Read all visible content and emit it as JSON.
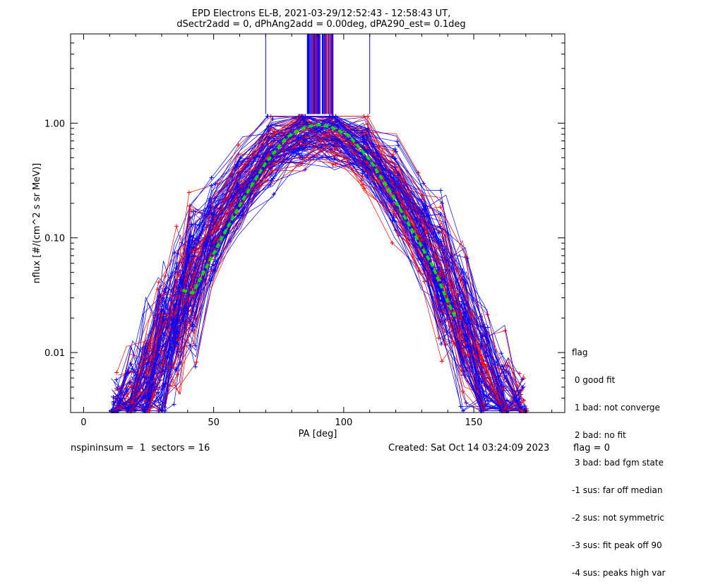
{
  "chart_data": {
    "type": "line",
    "title": "EPD Electrons EL-B, 2021-03-29/12:52:43 - 12:58:43 UT,",
    "subtitle": "dSectr2add = 0, dPhAng2add = 0.00deg, dPA290_est=   0.1deg",
    "xlabel": "PA [deg]",
    "ylabel": "nflux [#/(cm^2 s sr MeV)]",
    "xlim": [
      -5,
      185
    ],
    "ylim": [
      0.003,
      6
    ],
    "yscale": "log",
    "x_ticks": [
      "0",
      "50",
      "100",
      "150"
    ],
    "x_tick_values": [
      0,
      50,
      100,
      150
    ],
    "y_ticks": [
      "1.00",
      "0.10",
      "0.01"
    ],
    "y_tick_values": [
      1.0,
      0.1,
      0.01
    ],
    "series": [
      {
        "name": "fit",
        "color": "#00dd00",
        "style": "dashed",
        "x": [
          38,
          42,
          48,
          55,
          62,
          70,
          78,
          85,
          90,
          95,
          102,
          110,
          118,
          126,
          134,
          140,
          143
        ],
        "y": [
          0.035,
          0.033,
          0.06,
          0.12,
          0.23,
          0.45,
          0.75,
          0.92,
          0.97,
          0.93,
          0.78,
          0.48,
          0.25,
          0.12,
          0.058,
          0.028,
          0.02
        ]
      }
    ],
    "colors": {
      "red_series": "#ff0000",
      "blue_series": "#0000ff",
      "fit": "#00dd00",
      "marker": "#000000"
    }
  },
  "legend": {
    "title": "flag",
    "items": [
      " 0 good fit",
      " 1 bad: not converge",
      " 2 bad: no fit",
      " 3 bad: bad fgm state",
      "-1 sus: far off median",
      "-2 sus: not symmetric",
      "-3 sus: fit peak off 90",
      "-4 sus: peaks high var"
    ]
  },
  "footer": {
    "left": "nspininsum =  1  sectors = 16",
    "center": "Created: Sat Oct 14 03:24:09 2023",
    "right": "flag = 0"
  }
}
